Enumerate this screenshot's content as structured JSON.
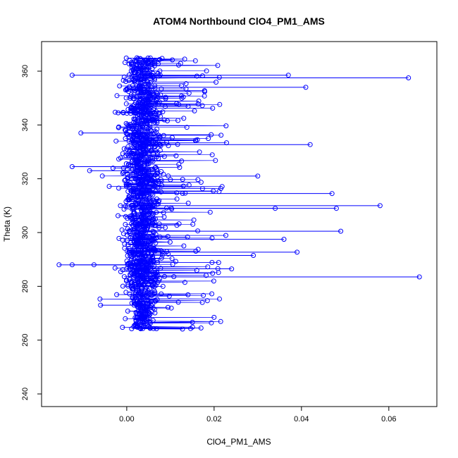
{
  "chart_data": {
    "type": "scatter",
    "title": "ATOM4 Northbound ClO4_PM1_AMS",
    "xlabel": "ClO4_PM1_AMS",
    "ylabel": "Theta (K)",
    "xlim": [
      -0.0195,
      0.071
    ],
    "ylim": [
      235.3,
      371.0
    ],
    "x_ticks": [
      "0.00",
      "0.02",
      "0.04",
      "0.06"
    ],
    "x_tick_values": [
      0.0,
      0.02,
      0.04,
      0.06
    ],
    "y_ticks": [
      "240",
      "260",
      "280",
      "300",
      "320",
      "340",
      "360"
    ],
    "y_tick_values": [
      240,
      260,
      280,
      300,
      320,
      340,
      360
    ],
    "series": [
      {
        "color": "#0000ff",
        "style": "points-and-lines",
        "marker": "open-circle",
        "n_points_estimated": 5000,
        "core": {
          "x_center": 0.0045,
          "x_spread": 0.0035,
          "y_range": [
            264,
            365
          ]
        },
        "notable_points": [
          {
            "x": 0.067,
            "y": 283.5
          },
          {
            "x": 0.0645,
            "y": 357.5
          },
          {
            "x": 0.058,
            "y": 310.0
          },
          {
            "x": 0.049,
            "y": 300.5
          },
          {
            "x": 0.048,
            "y": 309.0
          },
          {
            "x": 0.047,
            "y": 314.5
          },
          {
            "x": 0.042,
            "y": 332.7
          },
          {
            "x": 0.041,
            "y": 354.0
          },
          {
            "x": 0.039,
            "y": 292.7
          },
          {
            "x": 0.037,
            "y": 358.5
          },
          {
            "x": 0.036,
            "y": 297.5
          },
          {
            "x": 0.034,
            "y": 309.0
          },
          {
            "x": 0.03,
            "y": 321.0
          },
          {
            "x": 0.029,
            "y": 291.5
          },
          {
            "x": 0.024,
            "y": 286.5
          },
          {
            "x": 0.017,
            "y": 264.5
          },
          {
            "x": -0.0155,
            "y": 288.0
          },
          {
            "x": -0.0125,
            "y": 358.5
          },
          {
            "x": -0.0125,
            "y": 288.0
          },
          {
            "x": -0.0125,
            "y": 324.5
          },
          {
            "x": -0.0105,
            "y": 337.0
          },
          {
            "x": -0.0085,
            "y": 323.0
          },
          {
            "x": -0.0075,
            "y": 288.0
          },
          {
            "x": -0.006,
            "y": 273.0
          }
        ]
      }
    ]
  }
}
